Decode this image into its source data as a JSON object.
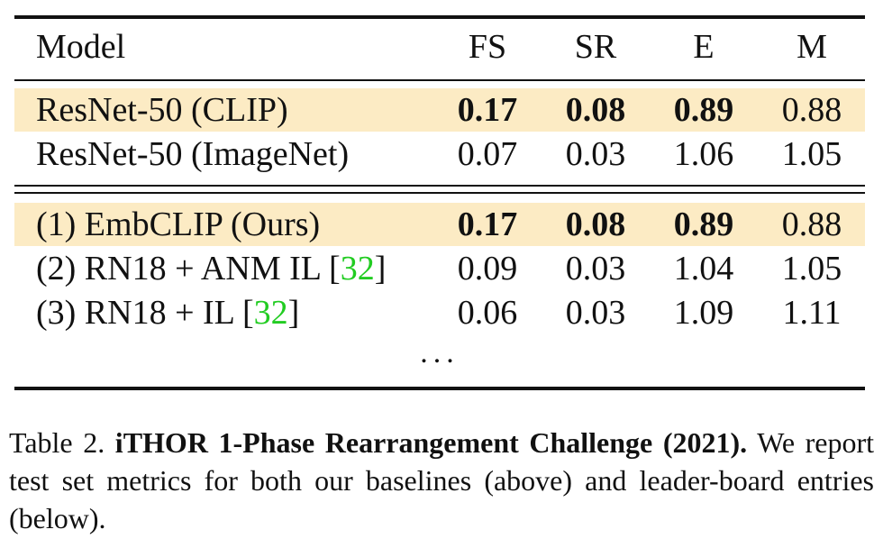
{
  "table": {
    "headers": [
      "Model",
      "FS",
      "SR",
      "E",
      "M"
    ],
    "baselines": [
      {
        "model": "ResNet-50 (CLIP)",
        "fs": "0.17",
        "sr": "0.08",
        "e": "0.89",
        "m": "0.88",
        "highlight": true
      },
      {
        "model": "ResNet-50 (ImageNet)",
        "fs": "0.07",
        "sr": "0.03",
        "e": "1.06",
        "m": "1.05",
        "highlight": false
      }
    ],
    "leaderboard": [
      {
        "model": "(1) EmbCLIP (Ours)",
        "ref": "",
        "fs": "0.17",
        "sr": "0.08",
        "e": "0.89",
        "m": "0.88",
        "highlight": true
      },
      {
        "model_prefix": "(2) RN18 + ANM IL [",
        "ref": "32",
        "model_suffix": "]",
        "fs": "0.09",
        "sr": "0.03",
        "e": "1.04",
        "m": "1.05"
      },
      {
        "model_prefix": "(3) RN18 + IL [",
        "ref": "32",
        "model_suffix": "]",
        "fs": "0.06",
        "sr": "0.03",
        "e": "1.09",
        "m": "1.11"
      }
    ],
    "ellipsis": "...",
    "highlight_color": "#fcebc4",
    "ref_color": "#22cc22"
  },
  "caption": {
    "label": "Table 2.",
    "title": "iTHOR 1-Phase Rearrangement Challenge (2021).",
    "text": "We report test set metrics for both our baselines (above) and leader-board entries (below)."
  }
}
